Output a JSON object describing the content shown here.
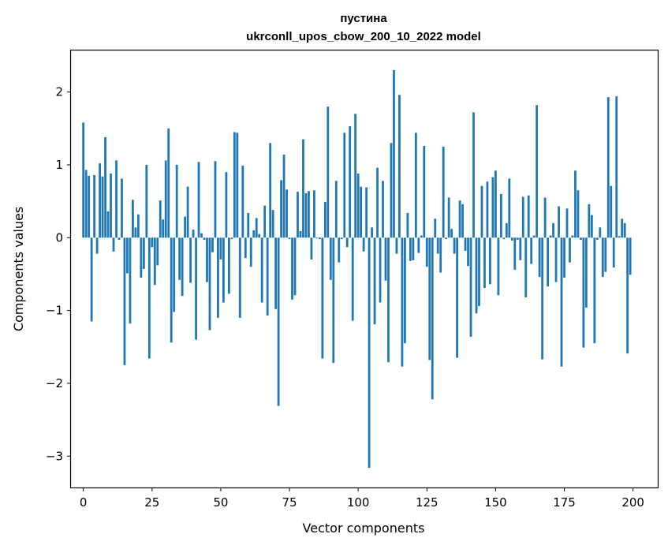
{
  "chart_data": {
    "type": "bar",
    "title": "пустина",
    "subtitle": "ukrconll_upos_cbow_200_10_2022 model",
    "xlabel": "Vector components",
    "ylabel": "Components values",
    "bar_color": "#1f77b4",
    "xlim": [
      -4.5,
      209
    ],
    "ylim": [
      -3.43,
      2.57
    ],
    "xticks": [
      0,
      25,
      50,
      75,
      100,
      125,
      150,
      175,
      200
    ],
    "yticks": [
      -3,
      -2,
      -1,
      0,
      1,
      2
    ],
    "ytick_labels": [
      "−3",
      "−2",
      "−1",
      "0",
      "1",
      "2"
    ],
    "grid": false,
    "legend": "none",
    "values": [
      1.58,
      0.93,
      0.85,
      -1.15,
      0.86,
      -0.22,
      1.02,
      0.84,
      1.38,
      0.36,
      0.88,
      -0.19,
      1.06,
      -0.03,
      0.81,
      -1.75,
      -0.49,
      -1.18,
      0.52,
      0.14,
      0.32,
      -0.55,
      -0.43,
      1.0,
      -1.66,
      -0.13,
      -0.65,
      -0.38,
      0.51,
      0.25,
      1.06,
      1.5,
      -1.44,
      -1.02,
      1.0,
      -0.58,
      -0.8,
      0.29,
      0.7,
      -0.62,
      0.11,
      -1.4,
      1.04,
      0.06,
      -0.03,
      -0.61,
      -1.27,
      -0.2,
      1.05,
      -1.1,
      -0.3,
      -0.89,
      0.9,
      -0.77,
      -0.02,
      1.45,
      1.44,
      -1.1,
      0.99,
      -0.28,
      0.34,
      -0.4,
      0.1,
      0.27,
      0.05,
      -0.89,
      0.44,
      -1.07,
      1.3,
      0.38,
      -0.98,
      -2.31,
      0.79,
      1.14,
      0.66,
      -0.02,
      -0.85,
      -0.79,
      0.63,
      0.09,
      1.35,
      0.61,
      0.64,
      -0.3,
      0.65,
      -0.01,
      -0.02,
      -1.66,
      0.49,
      1.8,
      -0.58,
      -1.72,
      0.78,
      -0.34,
      -0.02,
      1.44,
      -0.13,
      1.53,
      -1.14,
      1.7,
      0.88,
      0.7,
      -0.19,
      0.69,
      -3.16,
      0.14,
      -1.19,
      0.96,
      -0.89,
      0.78,
      -0.59,
      -1.71,
      1.3,
      2.3,
      -0.22,
      1.96,
      -1.77,
      -1.45,
      0.34,
      -0.32,
      -0.31,
      1.44,
      -0.21,
      0.03,
      1.26,
      -0.4,
      -1.68,
      -2.22,
      0.26,
      -0.22,
      -0.48,
      1.25,
      -0.02,
      0.55,
      0.12,
      -0.22,
      -1.65,
      0.51,
      0.46,
      -0.18,
      -0.39,
      -1.36,
      1.72,
      -1.04,
      -0.94,
      0.71,
      -0.69,
      0.77,
      -0.64,
      0.83,
      0.92,
      -0.79,
      0.6,
      -0.02,
      0.2,
      0.81,
      -0.04,
      -0.44,
      -0.03,
      -0.31,
      0.56,
      -0.82,
      0.58,
      -0.36,
      0.03,
      1.82,
      -0.54,
      -1.67,
      0.55,
      -0.67,
      0.03,
      0.2,
      -0.61,
      0.43,
      -1.77,
      -0.55,
      0.4,
      -0.34,
      0.03,
      0.92,
      0.65,
      -0.03,
      -1.51,
      -0.96,
      0.46,
      0.31,
      -1.45,
      -0.03,
      0.14,
      -0.54,
      -0.47,
      1.93,
      0.71,
      -0.41,
      1.94,
      0.02,
      0.26,
      0.2,
      -1.59,
      -0.51
    ]
  }
}
